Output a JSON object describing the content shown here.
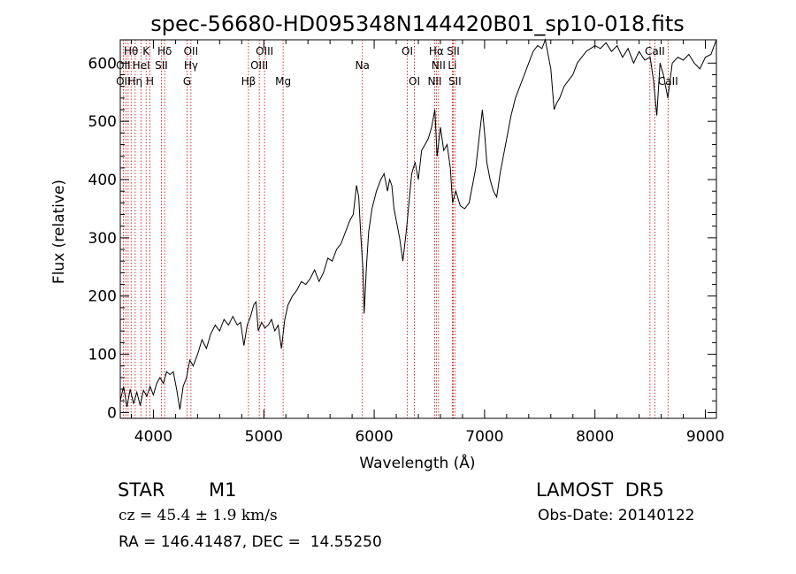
{
  "chart_data": {
    "type": "line",
    "title": "spec-56680-HD095348N144420B01_sp10-018.fits",
    "xlabel": "Wavelength (Å)",
    "ylabel": "Flux (relative)",
    "xlim": [
      3700,
      9100
    ],
    "ylim": [
      -10,
      640
    ],
    "x_ticks": [
      4000,
      5000,
      6000,
      7000,
      8000,
      9000
    ],
    "y_ticks": [
      0,
      100,
      200,
      300,
      400,
      500,
      600
    ],
    "series": [
      {
        "points": [
          [
            3700,
            20
          ],
          [
            3730,
            45
          ],
          [
            3760,
            10
          ],
          [
            3790,
            40
          ],
          [
            3820,
            15
          ],
          [
            3850,
            35
          ],
          [
            3880,
            12
          ],
          [
            3910,
            38
          ],
          [
            3940,
            28
          ],
          [
            3970,
            45
          ],
          [
            4000,
            30
          ],
          [
            4030,
            50
          ],
          [
            4060,
            60
          ],
          [
            4090,
            50
          ],
          [
            4120,
            70
          ],
          [
            4150,
            65
          ],
          [
            4180,
            70
          ],
          [
            4210,
            40
          ],
          [
            4240,
            5
          ],
          [
            4270,
            45
          ],
          [
            4300,
            60
          ],
          [
            4330,
            90
          ],
          [
            4360,
            80
          ],
          [
            4400,
            100
          ],
          [
            4440,
            125
          ],
          [
            4480,
            110
          ],
          [
            4520,
            135
          ],
          [
            4560,
            150
          ],
          [
            4600,
            140
          ],
          [
            4640,
            160
          ],
          [
            4680,
            150
          ],
          [
            4720,
            165
          ],
          [
            4760,
            150
          ],
          [
            4790,
            155
          ],
          [
            4820,
            115
          ],
          [
            4850,
            150
          ],
          [
            4880,
            165
          ],
          [
            4910,
            185
          ],
          [
            4930,
            190
          ],
          [
            4950,
            140
          ],
          [
            4980,
            155
          ],
          [
            5010,
            145
          ],
          [
            5040,
            150
          ],
          [
            5070,
            160
          ],
          [
            5100,
            140
          ],
          [
            5130,
            150
          ],
          [
            5160,
            110
          ],
          [
            5190,
            160
          ],
          [
            5220,
            185
          ],
          [
            5260,
            200
          ],
          [
            5300,
            210
          ],
          [
            5340,
            225
          ],
          [
            5380,
            220
          ],
          [
            5420,
            230
          ],
          [
            5460,
            245
          ],
          [
            5500,
            225
          ],
          [
            5540,
            240
          ],
          [
            5580,
            265
          ],
          [
            5620,
            260
          ],
          [
            5660,
            280
          ],
          [
            5700,
            290
          ],
          [
            5740,
            310
          ],
          [
            5780,
            330
          ],
          [
            5810,
            340
          ],
          [
            5840,
            390
          ],
          [
            5860,
            370
          ],
          [
            5880,
            300
          ],
          [
            5900,
            240
          ],
          [
            5910,
            170
          ],
          [
            5930,
            250
          ],
          [
            5950,
            310
          ],
          [
            5980,
            350
          ],
          [
            6020,
            380
          ],
          [
            6060,
            400
          ],
          [
            6090,
            410
          ],
          [
            6120,
            380
          ],
          [
            6140,
            400
          ],
          [
            6160,
            390
          ],
          [
            6180,
            350
          ],
          [
            6200,
            330
          ],
          [
            6230,
            300
          ],
          [
            6260,
            260
          ],
          [
            6290,
            310
          ],
          [
            6320,
            370
          ],
          [
            6340,
            410
          ],
          [
            6370,
            430
          ],
          [
            6400,
            400
          ],
          [
            6430,
            450
          ],
          [
            6460,
            460
          ],
          [
            6490,
            470
          ],
          [
            6520,
            490
          ],
          [
            6550,
            520
          ],
          [
            6570,
            440
          ],
          [
            6600,
            490
          ],
          [
            6630,
            450
          ],
          [
            6660,
            460
          ],
          [
            6690,
            420
          ],
          [
            6710,
            360
          ],
          [
            6740,
            380
          ],
          [
            6780,
            355
          ],
          [
            6820,
            350
          ],
          [
            6860,
            360
          ],
          [
            6890,
            390
          ],
          [
            6920,
            420
          ],
          [
            6950,
            470
          ],
          [
            6980,
            520
          ],
          [
            7000,
            480
          ],
          [
            7020,
            430
          ],
          [
            7050,
            400
          ],
          [
            7080,
            380
          ],
          [
            7110,
            370
          ],
          [
            7140,
            410
          ],
          [
            7170,
            440
          ],
          [
            7200,
            470
          ],
          [
            7240,
            510
          ],
          [
            7280,
            540
          ],
          [
            7320,
            560
          ],
          [
            7360,
            580
          ],
          [
            7400,
            600
          ],
          [
            7440,
            620
          ],
          [
            7480,
            630
          ],
          [
            7520,
            625
          ],
          [
            7550,
            640
          ],
          [
            7580,
            610
          ],
          [
            7600,
            590
          ],
          [
            7630,
            520
          ],
          [
            7650,
            530
          ],
          [
            7680,
            540
          ],
          [
            7720,
            560
          ],
          [
            7760,
            570
          ],
          [
            7800,
            580
          ],
          [
            7840,
            600
          ],
          [
            7880,
            610
          ],
          [
            7920,
            620
          ],
          [
            7960,
            625
          ],
          [
            8000,
            630
          ],
          [
            8050,
            625
          ],
          [
            8100,
            635
          ],
          [
            8150,
            620
          ],
          [
            8200,
            630
          ],
          [
            8250,
            610
          ],
          [
            8300,
            625
          ],
          [
            8350,
            600
          ],
          [
            8400,
            620
          ],
          [
            8450,
            605
          ],
          [
            8500,
            610
          ],
          [
            8530,
            570
          ],
          [
            8560,
            510
          ],
          [
            8590,
            600
          ],
          [
            8620,
            580
          ],
          [
            8660,
            540
          ],
          [
            8700,
            600
          ],
          [
            8750,
            610
          ],
          [
            8800,
            605
          ],
          [
            8850,
            615
          ],
          [
            8900,
            600
          ],
          [
            8950,
            590
          ],
          [
            9000,
            610
          ],
          [
            9050,
            615
          ],
          [
            9100,
            640
          ]
        ]
      }
    ],
    "line_markers": [
      {
        "label": "Hθ",
        "x": 3798,
        "row": 1
      },
      {
        "label": "K",
        "x": 3934,
        "row": 1
      },
      {
        "label": "Hδ",
        "x": 4102,
        "row": 1
      },
      {
        "label": "OII",
        "x": 4340,
        "row": 1
      },
      {
        "label": "OIII",
        "x": 5007,
        "row": 1
      },
      {
        "label": "OI",
        "x": 6300,
        "row": 1
      },
      {
        "label": "Hα",
        "x": 6563,
        "row": 1
      },
      {
        "label": "SII",
        "x": 6716,
        "row": 1
      },
      {
        "label": "CaII",
        "x": 8542,
        "row": 1
      },
      {
        "label": "OII",
        "x": 3727,
        "row": 2
      },
      {
        "label": "HeI",
        "x": 3889,
        "row": 2
      },
      {
        "label": "SII",
        "x": 4072,
        "row": 2
      },
      {
        "label": "Hγ",
        "x": 4340,
        "row": 2
      },
      {
        "label": "OIII",
        "x": 4959,
        "row": 2
      },
      {
        "label": "Na",
        "x": 5893,
        "row": 2
      },
      {
        "label": "NII",
        "x": 6583,
        "row": 2
      },
      {
        "label": "Li",
        "x": 6708,
        "row": 2
      },
      {
        "label": "OII",
        "x": 3727,
        "row": 3
      },
      {
        "label": "Hη",
        "x": 3835,
        "row": 3
      },
      {
        "label": "H",
        "x": 3969,
        "row": 3
      },
      {
        "label": "G",
        "x": 4305,
        "row": 3
      },
      {
        "label": "Hβ",
        "x": 4861,
        "row": 3
      },
      {
        "label": "Mg",
        "x": 5175,
        "row": 3
      },
      {
        "label": "OI",
        "x": 6364,
        "row": 3
      },
      {
        "label": "NII",
        "x": 6548,
        "row": 3
      },
      {
        "label": "SII",
        "x": 6731,
        "row": 3
      },
      {
        "label": "CaII",
        "x": 8662,
        "row": 3
      }
    ],
    "extra_marker_lines": [
      3750,
      3771,
      3889,
      4861,
      4959,
      8498
    ]
  },
  "info": {
    "class": "STAR",
    "subclass": "M1",
    "survey": "LAMOST  DR5",
    "cz": "cz = 45.4 ± 1.9 km/s",
    "obs_date": "Obs-Date: 20140122",
    "coords": "RA = 146.41487, DEC =  14.55250"
  },
  "colors": {
    "spectrum": "#000000",
    "marker_line": "#cc0000",
    "axis": "#000000"
  }
}
